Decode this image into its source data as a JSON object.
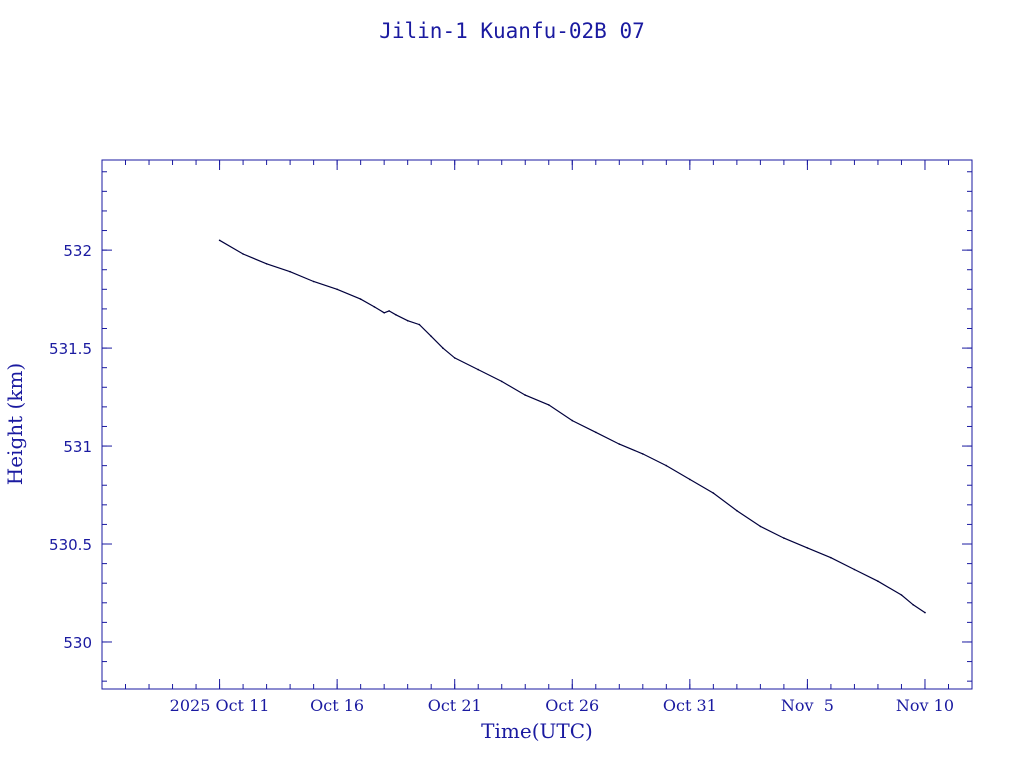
{
  "chart_data": {
    "type": "line",
    "title": "Jilin-1 Kuanfu-02B 07",
    "xlabel": "Time(UTC)",
    "ylabel": "Height (km)",
    "x_axis": {
      "type": "date",
      "range": [
        "2025-10-06",
        "2025-11-12"
      ],
      "ticks": [
        {
          "date": "2025-10-11",
          "label": "2025 Oct 11"
        },
        {
          "date": "2025-10-16",
          "label": "Oct 16"
        },
        {
          "date": "2025-10-21",
          "label": "Oct 21"
        },
        {
          "date": "2025-10-26",
          "label": "Oct 26"
        },
        {
          "date": "2025-10-31",
          "label": "Oct 31"
        },
        {
          "date": "2025-11-05",
          "label": "Nov  5"
        },
        {
          "date": "2025-11-10",
          "label": "Nov 10"
        }
      ]
    },
    "y_axis": {
      "range": [
        529.76,
        532.46
      ],
      "ticks": [
        {
          "value": 530,
          "label": "530"
        },
        {
          "value": 530.5,
          "label": "530.5"
        },
        {
          "value": 531,
          "label": "531"
        },
        {
          "value": 531.5,
          "label": "531.5"
        },
        {
          "value": 532,
          "label": "532"
        }
      ]
    },
    "grid": false,
    "legend": "none",
    "colors": {
      "axis": "#1a1aa0",
      "line": "#00003c"
    },
    "series": [
      {
        "points": [
          [
            "2025-10-11 00:00",
            532.05
          ],
          [
            "2025-10-12 00:00",
            531.98
          ],
          [
            "2025-10-13 00:00",
            531.93
          ],
          [
            "2025-10-14 00:00",
            531.89
          ],
          [
            "2025-10-15 00:00",
            531.84
          ],
          [
            "2025-10-16 00:00",
            531.8
          ],
          [
            "2025-10-17 00:00",
            531.75
          ],
          [
            "2025-10-17 14:00",
            531.71
          ],
          [
            "2025-10-18 00:00",
            531.68
          ],
          [
            "2025-10-18 05:00",
            531.69
          ],
          [
            "2025-10-18 12:00",
            531.67
          ],
          [
            "2025-10-19 00:00",
            531.64
          ],
          [
            "2025-10-19 12:00",
            531.62
          ],
          [
            "2025-10-20 00:00",
            531.56
          ],
          [
            "2025-10-20 12:00",
            531.5
          ],
          [
            "2025-10-21 00:00",
            531.45
          ],
          [
            "2025-10-22 00:00",
            531.39
          ],
          [
            "2025-10-23 00:00",
            531.33
          ],
          [
            "2025-10-24 00:00",
            531.26
          ],
          [
            "2025-10-25 00:00",
            531.21
          ],
          [
            "2025-10-26 00:00",
            531.13
          ],
          [
            "2025-10-27 00:00",
            531.07
          ],
          [
            "2025-10-28 00:00",
            531.01
          ],
          [
            "2025-10-29 00:00",
            530.96
          ],
          [
            "2025-10-30 00:00",
            530.9
          ],
          [
            "2025-10-31 00:00",
            530.83
          ],
          [
            "2025-11-01 00:00",
            530.76
          ],
          [
            "2025-11-02 00:00",
            530.67
          ],
          [
            "2025-11-03 00:00",
            530.59
          ],
          [
            "2025-11-04 00:00",
            530.53
          ],
          [
            "2025-11-05 00:00",
            530.48
          ],
          [
            "2025-11-06 00:00",
            530.43
          ],
          [
            "2025-11-07 00:00",
            530.37
          ],
          [
            "2025-11-08 00:00",
            530.31
          ],
          [
            "2025-11-09 00:00",
            530.24
          ],
          [
            "2025-11-09 12:00",
            530.19
          ],
          [
            "2025-11-10 00:00",
            530.15
          ]
        ]
      }
    ]
  }
}
